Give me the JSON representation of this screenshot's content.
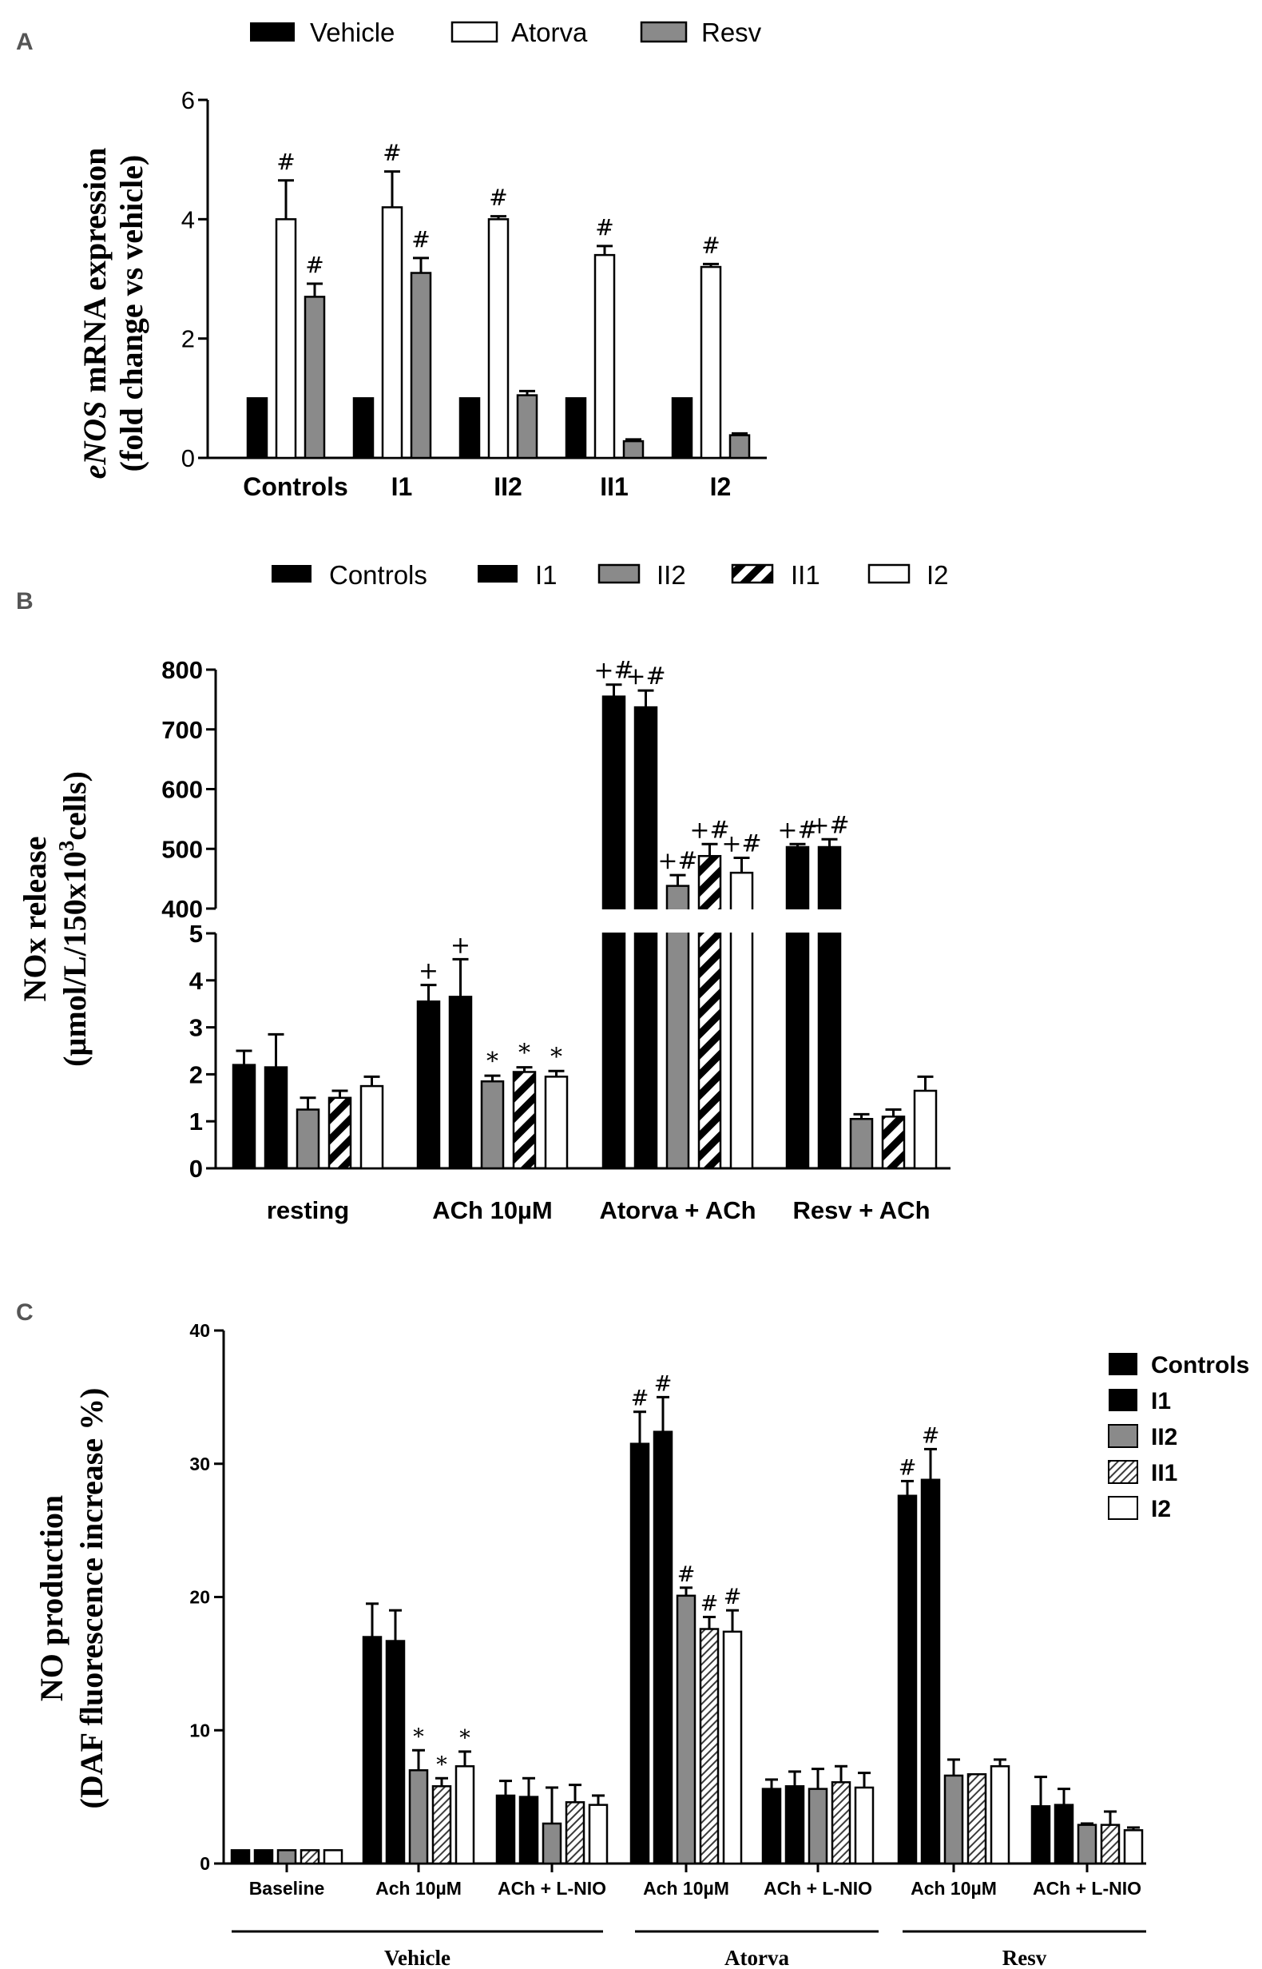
{
  "colors": {
    "black": "#000000",
    "gray": "#8a8a8a",
    "white": "#ffffff"
  },
  "chart_data": [
    {
      "panel": "A",
      "type": "bar",
      "ylabel_italic": "eNOS",
      "ylabel_rest": " mRNA expression",
      "ylabel2": "(fold change vs vehicle)",
      "categories": [
        "Controls",
        "I1",
        "II2",
        "II1",
        "I2"
      ],
      "ylim": [
        0,
        6
      ],
      "yticks": [
        "0",
        "2",
        "4",
        "6"
      ],
      "series": [
        {
          "name": "Vehicle",
          "fill": "black",
          "values": [
            1,
            1,
            1,
            1,
            1
          ],
          "errors": [
            0,
            0,
            0,
            0,
            0
          ],
          "marks": [
            "",
            "",
            "",
            "",
            ""
          ]
        },
        {
          "name": "Atorva",
          "fill": "white",
          "values": [
            4.0,
            4.2,
            4.0,
            3.4,
            3.2
          ],
          "errors": [
            0.65,
            0.6,
            0.05,
            0.15,
            0.05
          ],
          "marks": [
            "#",
            "#",
            "#",
            "#",
            "#"
          ]
        },
        {
          "name": "Resv",
          "fill": "gray",
          "values": [
            2.7,
            3.1,
            1.05,
            0.28,
            0.38
          ],
          "errors": [
            0.22,
            0.25,
            0.07,
            0.03,
            0.03
          ],
          "marks": [
            "#",
            "#",
            "",
            "",
            ""
          ]
        }
      ]
    },
    {
      "panel": "B",
      "type": "bar",
      "ylabel": "NOx release",
      "ylabel2_pre": "(µmol/L/150x10",
      "ylabel2_sup": "3",
      "ylabel2_post": "cells)",
      "categories": [
        "resting",
        "ACh 10µM",
        "Atorva + ACh",
        "Resv + ACh"
      ],
      "ylim_lower": [
        0,
        5
      ],
      "ylim_upper": [
        400,
        800
      ],
      "yticks_lower": [
        "0",
        "1",
        "2",
        "3",
        "4",
        "5"
      ],
      "yticks_upper": [
        "400",
        "500",
        "600",
        "700",
        "800"
      ],
      "series": [
        {
          "name": "Controls",
          "fill": "black",
          "values": [
            2.2,
            3.55,
            755,
            503
          ],
          "errors": [
            0.3,
            0.35,
            20,
            5
          ],
          "marks": [
            "",
            "+",
            "+#",
            "+#"
          ]
        },
        {
          "name": "I1",
          "fill": "black",
          "values": [
            2.15,
            3.65,
            737,
            503
          ],
          "errors": [
            0.7,
            0.8,
            28,
            13
          ],
          "marks": [
            "",
            "+",
            "+#",
            "+#"
          ]
        },
        {
          "name": "II2",
          "fill": "gray",
          "values": [
            1.25,
            1.85,
            438,
            1.05
          ],
          "errors": [
            0.25,
            0.12,
            18,
            0.1
          ],
          "marks": [
            "",
            "*",
            "+#",
            ""
          ]
        },
        {
          "name": "II1",
          "fill": "hatch",
          "values": [
            1.5,
            2.05,
            488,
            1.1
          ],
          "errors": [
            0.15,
            0.1,
            20,
            0.15
          ],
          "marks": [
            "",
            "*",
            "+#",
            ""
          ]
        },
        {
          "name": "I2",
          "fill": "white",
          "values": [
            1.75,
            1.95,
            460,
            1.65
          ],
          "errors": [
            0.2,
            0.12,
            25,
            0.3
          ],
          "marks": [
            "",
            "*",
            "+#",
            ""
          ]
        }
      ]
    },
    {
      "panel": "C",
      "type": "bar",
      "ylabel": "NO production",
      "ylabel2": "(DAF fluorescence increase %)",
      "ylim": [
        0,
        40
      ],
      "yticks": [
        "0",
        "10",
        "20",
        "30",
        "40"
      ],
      "groups": [
        "Baseline",
        "Ach 10µM",
        "ACh + L-NIO",
        "Ach 10µM",
        "ACh + L-NIO",
        "Ach 10µM",
        "ACh + L-NIO"
      ],
      "treatments": [
        "Vehicle",
        "Atorva",
        "Resv"
      ],
      "series": [
        {
          "name": "Controls",
          "fill": "black",
          "values": [
            1,
            17,
            5.1,
            31.5,
            5.6,
            27.6,
            4.3
          ],
          "errors": [
            0,
            2.5,
            1.1,
            2.4,
            0.7,
            1.1,
            2.2
          ],
          "marks": [
            "",
            "",
            "",
            "#",
            "",
            "#",
            ""
          ]
        },
        {
          "name": "I1",
          "fill": "black",
          "values": [
            1,
            16.7,
            5.0,
            32.4,
            5.8,
            28.8,
            4.4
          ],
          "errors": [
            0,
            2.3,
            1.4,
            2.6,
            1.1,
            2.3,
            1.2
          ],
          "marks": [
            "",
            "",
            "",
            "#",
            "",
            "#",
            ""
          ]
        },
        {
          "name": "II2",
          "fill": "gray",
          "values": [
            1,
            7.0,
            3.0,
            20.1,
            5.6,
            6.6,
            2.9
          ],
          "errors": [
            0,
            1.5,
            2.7,
            0.6,
            1.5,
            1.2,
            0.1
          ],
          "marks": [
            "",
            "*",
            "",
            "#",
            "",
            "",
            ""
          ]
        },
        {
          "name": "II1",
          "fill": "hatchfine",
          "values": [
            1,
            5.8,
            4.6,
            17.6,
            6.1,
            6.7,
            2.9
          ],
          "errors": [
            0,
            0.6,
            1.3,
            0.9,
            1.2,
            0,
            1.0
          ],
          "marks": [
            "",
            "*",
            "",
            "#",
            "",
            "",
            ""
          ]
        },
        {
          "name": "I2",
          "fill": "white",
          "values": [
            1,
            7.3,
            4.4,
            17.4,
            5.7,
            7.3,
            2.5
          ],
          "errors": [
            0,
            1.1,
            0.7,
            1.6,
            1.1,
            0.5,
            0.2
          ],
          "marks": [
            "",
            "*",
            "",
            "#",
            "",
            "",
            ""
          ]
        }
      ]
    }
  ]
}
